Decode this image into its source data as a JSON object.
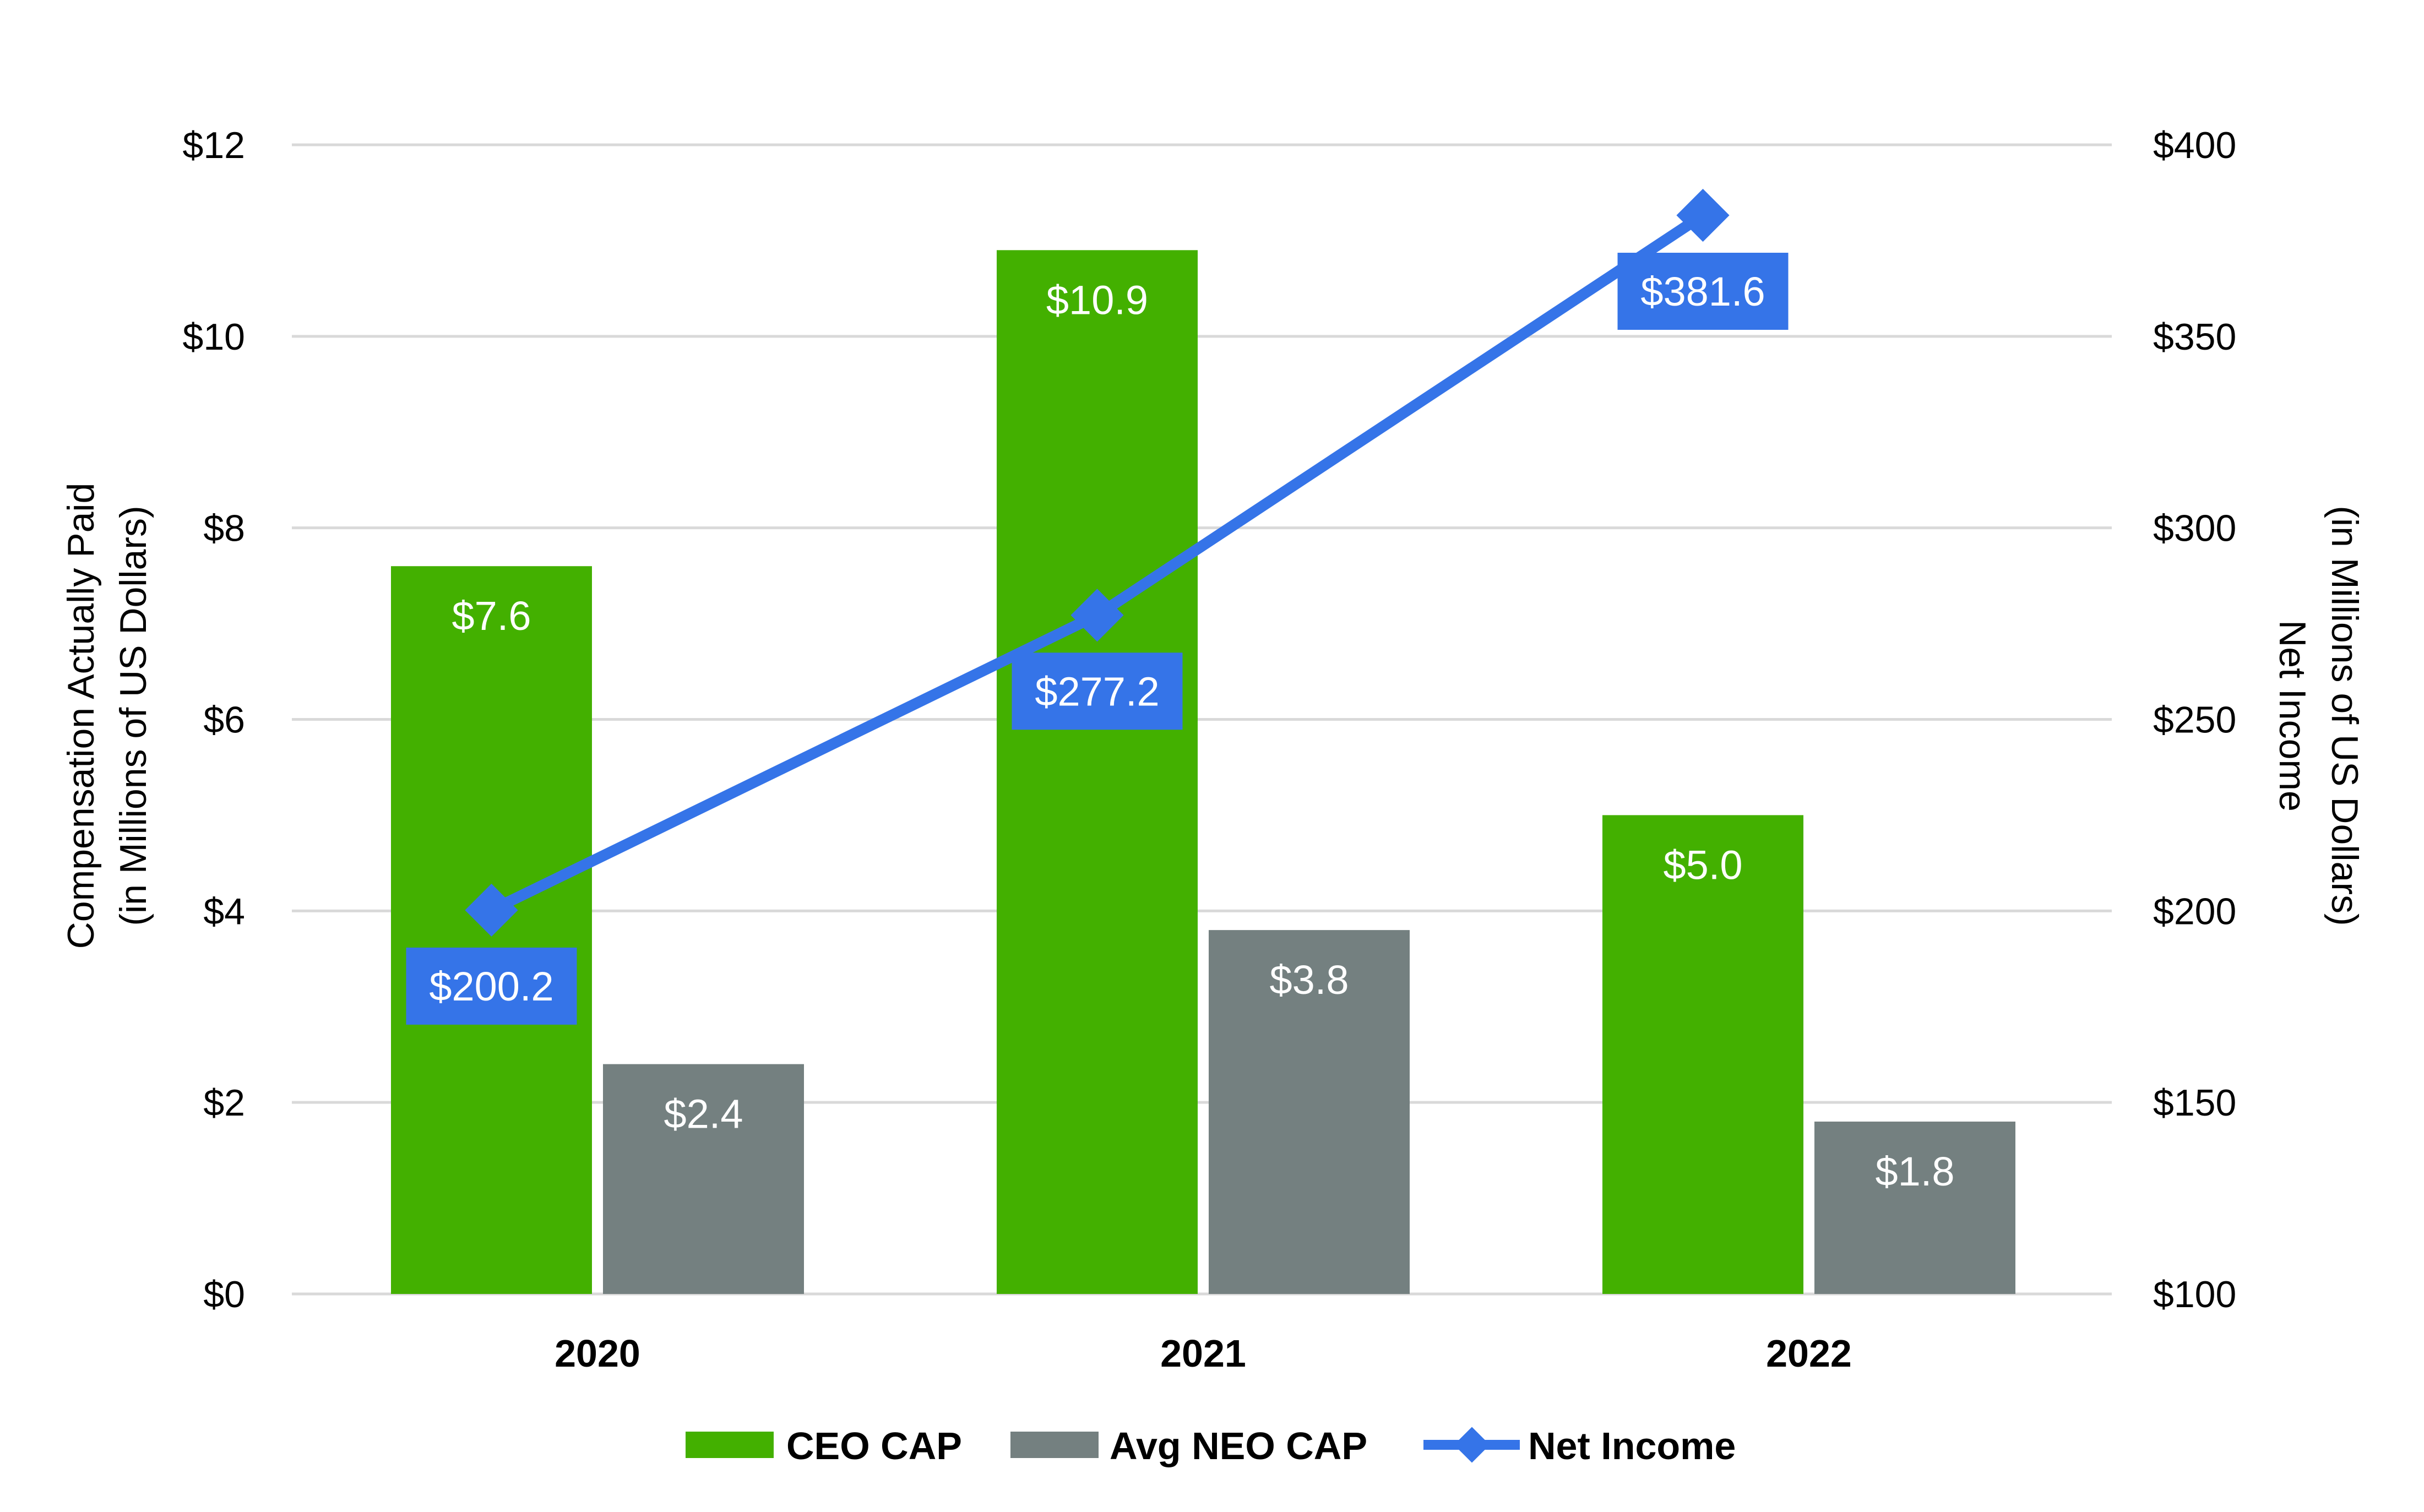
{
  "chart_data": {
    "type": "bar",
    "categories": [
      "2020",
      "2021",
      "2022"
    ],
    "series": [
      {
        "name": "CEO CAP",
        "kind": "bar",
        "axis": "left",
        "color": "#43b000",
        "values": [
          7.6,
          10.9,
          5.0
        ],
        "labels": [
          "$7.6",
          "$10.9",
          "$5.0"
        ]
      },
      {
        "name": "Avg NEO CAP",
        "kind": "bar",
        "axis": "left",
        "color": "#748080",
        "values": [
          2.4,
          3.8,
          1.8
        ],
        "labels": [
          "$2.4",
          "$3.8",
          "$1.8"
        ]
      },
      {
        "name": "Net Income",
        "kind": "line",
        "axis": "right",
        "color": "#3574e8",
        "values": [
          200.2,
          277.2,
          381.6
        ],
        "labels": [
          "$200.2",
          "$277.2",
          "$381.6"
        ]
      }
    ],
    "left_axis": {
      "label_line1": "Compensation Actually Paid",
      "label_line2": "(in Millions of US Dollars)",
      "ylim": [
        0,
        12
      ],
      "ticks": [
        0,
        2,
        4,
        6,
        8,
        10,
        12
      ],
      "tick_labels": [
        "$0",
        "$2",
        "$4",
        "$6",
        "$8",
        "$10",
        "$12"
      ]
    },
    "right_axis": {
      "label_line1": "Net Income",
      "label_line2": "(in Millions of US Dollars)",
      "ylim": [
        100,
        400
      ],
      "ticks": [
        100,
        150,
        200,
        250,
        300,
        350,
        400
      ],
      "tick_labels": [
        "$100",
        "$150",
        "$200",
        "$250",
        "$300",
        "$350",
        "$400"
      ]
    },
    "grid": true,
    "legend_position": "bottom-center",
    "gridline_color": "#d9d9d9"
  }
}
